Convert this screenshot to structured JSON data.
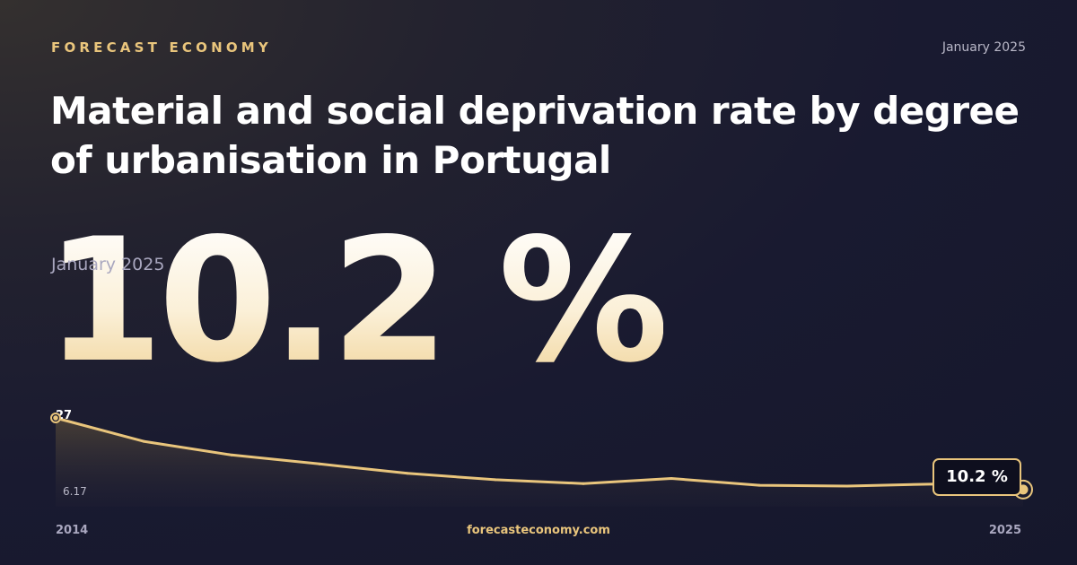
{
  "header": {
    "brand": "FORECAST ECONOMY",
    "date": "January 2025"
  },
  "title": "Material and social deprivation rate by degree of urbanisation in Portugal",
  "headline": {
    "value": "10.2 %",
    "date": "January 2025"
  },
  "footer": {
    "site": "forecasteconomy.com"
  },
  "colors": {
    "accent": "#e9c57c",
    "background": "#191a30"
  },
  "chart_data": {
    "type": "area",
    "title": "",
    "xlabel": "",
    "ylabel": "",
    "x_start_label": "2014",
    "x_end_label": "2025",
    "max_label": "27",
    "min_label": "6.17",
    "end_label": "10.2 %",
    "ylim": [
      6.17,
      27
    ],
    "x": [
      2014,
      2015,
      2016,
      2017,
      2018,
      2019,
      2020,
      2021,
      2022,
      2023,
      2024,
      2025
    ],
    "values": [
      27,
      21.5,
      18.3,
      16.2,
      14.0,
      12.5,
      11.6,
      12.8,
      11.2,
      11.0,
      11.5,
      10.2
    ]
  }
}
